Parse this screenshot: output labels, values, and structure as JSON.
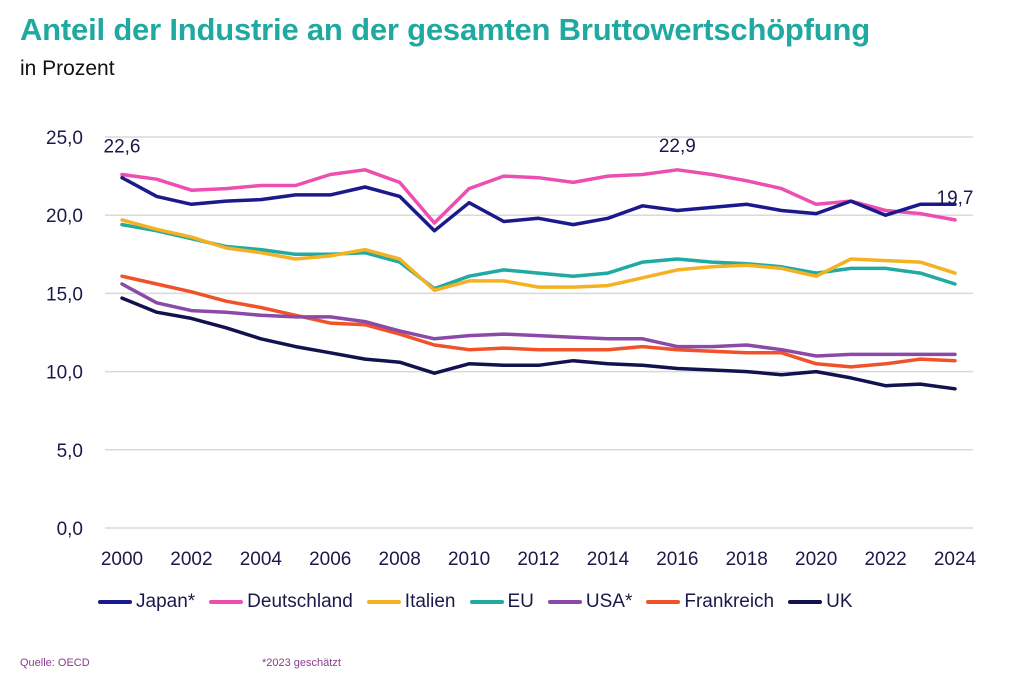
{
  "chart_data": {
    "type": "line",
    "title": "Anteil der Industrie an der gesamten Bruttowertschöpfung",
    "subtitle": "in Prozent",
    "xlabel": "",
    "ylabel": "",
    "x": [
      2000,
      2001,
      2002,
      2003,
      2004,
      2005,
      2006,
      2007,
      2008,
      2009,
      2010,
      2011,
      2012,
      2013,
      2014,
      2015,
      2016,
      2017,
      2018,
      2019,
      2020,
      2021,
      2022,
      2023,
      2024
    ],
    "x_tick_labels": [
      "2000",
      "2002",
      "2004",
      "2006",
      "2008",
      "2010",
      "2012",
      "2014",
      "2016",
      "2018",
      "2020",
      "2022",
      "2024"
    ],
    "x_ticks": [
      2000,
      2002,
      2004,
      2006,
      2008,
      2010,
      2012,
      2014,
      2016,
      2018,
      2020,
      2022,
      2024
    ],
    "ylim": [
      0,
      25
    ],
    "y_ticks": [
      0,
      5,
      10,
      15,
      20,
      25
    ],
    "y_tick_labels": [
      "0,0",
      "5,0",
      "10,0",
      "15,0",
      "20,0",
      "25,0"
    ],
    "grid": true,
    "legend_position": "bottom",
    "series": [
      {
        "name": "Japan*",
        "color": "#1b1a8c",
        "values": [
          22.4,
          21.2,
          20.7,
          20.9,
          21.0,
          21.3,
          21.3,
          21.8,
          21.2,
          19.0,
          20.8,
          19.6,
          19.8,
          19.4,
          19.8,
          20.6,
          20.3,
          20.5,
          20.7,
          20.3,
          20.1,
          20.9,
          20.0,
          20.7,
          20.7
        ]
      },
      {
        "name": "Deutschland",
        "color": "#ec4fb1",
        "values": [
          22.6,
          22.3,
          21.6,
          21.7,
          21.9,
          21.9,
          22.6,
          22.9,
          22.1,
          19.5,
          21.7,
          22.5,
          22.4,
          22.1,
          22.5,
          22.6,
          22.9,
          22.6,
          22.2,
          21.7,
          20.7,
          20.9,
          20.3,
          20.1,
          19.7
        ]
      },
      {
        "name": "Italien",
        "color": "#f4b223",
        "values": [
          19.7,
          19.1,
          18.6,
          17.9,
          17.6,
          17.2,
          17.4,
          17.8,
          17.2,
          15.2,
          15.8,
          15.8,
          15.4,
          15.4,
          15.5,
          16.0,
          16.5,
          16.7,
          16.8,
          16.6,
          16.1,
          17.2,
          17.1,
          17.0,
          16.3
        ]
      },
      {
        "name": "EU",
        "color": "#21aaa2",
        "values": [
          19.4,
          19.0,
          18.5,
          18.0,
          17.8,
          17.5,
          17.5,
          17.6,
          17.0,
          15.3,
          16.1,
          16.5,
          16.3,
          16.1,
          16.3,
          17.0,
          17.2,
          17.0,
          16.9,
          16.7,
          16.3,
          16.6,
          16.6,
          16.3,
          15.6
        ]
      },
      {
        "name": "USA*",
        "color": "#8b4aa8",
        "values": [
          15.6,
          14.4,
          13.9,
          13.8,
          13.6,
          13.5,
          13.5,
          13.2,
          12.6,
          12.1,
          12.3,
          12.4,
          12.3,
          12.2,
          12.1,
          12.1,
          11.6,
          11.6,
          11.7,
          11.4,
          11.0,
          11.1,
          11.1,
          11.1,
          11.1
        ]
      },
      {
        "name": "Frankreich",
        "color": "#f0522a",
        "values": [
          16.1,
          15.6,
          15.1,
          14.5,
          14.1,
          13.6,
          13.1,
          13.0,
          12.4,
          11.7,
          11.4,
          11.5,
          11.4,
          11.4,
          11.4,
          11.6,
          11.4,
          11.3,
          11.2,
          11.2,
          10.5,
          10.3,
          10.5,
          10.8,
          10.7
        ]
      },
      {
        "name": "UK",
        "color": "#12124f",
        "values": [
          14.7,
          13.8,
          13.4,
          12.8,
          12.1,
          11.6,
          11.2,
          10.8,
          10.6,
          9.9,
          10.5,
          10.4,
          10.4,
          10.7,
          10.5,
          10.4,
          10.2,
          10.1,
          10.0,
          9.8,
          10.0,
          9.6,
          9.1,
          9.2,
          8.9
        ]
      }
    ],
    "annotations": [
      {
        "text": "22,6",
        "x": 2000,
        "y": 22.6
      },
      {
        "text": "22,9",
        "x": 2016,
        "y": 22.9
      },
      {
        "text": "19,7",
        "x": 2024,
        "y": 19.7
      }
    ]
  },
  "footer": {
    "source": "Quelle: OECD",
    "note": "*2023 geschätzt"
  }
}
